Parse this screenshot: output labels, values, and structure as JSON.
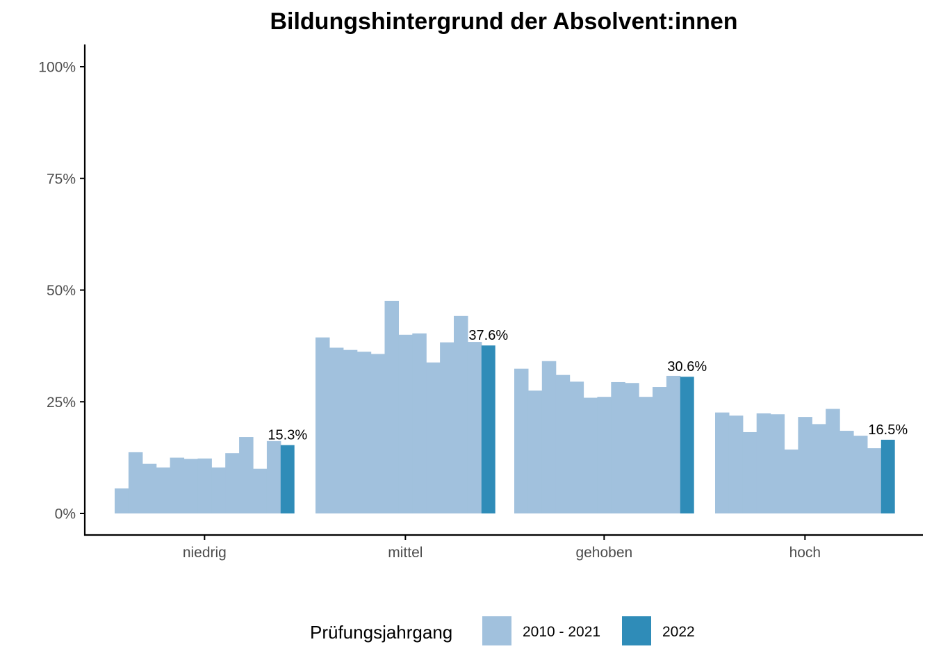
{
  "colors": {
    "previous": "#a1c1dd",
    "current": "#2f8cb8",
    "axis": "#000000",
    "tick_text": "#4d4d4d"
  },
  "chart_data": {
    "type": "bar",
    "title": "Bildungshintergrund der Absolvent:innen",
    "xlabel": "",
    "ylabel": "",
    "ylim": [
      0,
      1
    ],
    "y_ticks": [
      {
        "value": 0,
        "label": "0%"
      },
      {
        "value": 0.25,
        "label": "25%"
      },
      {
        "value": 0.5,
        "label": "50%"
      },
      {
        "value": 0.75,
        "label": "75%"
      },
      {
        "value": 1,
        "label": "100%"
      }
    ],
    "grid": false,
    "legend_position": "bottom",
    "legend_title": "Prüfungsjahrgang",
    "legend": [
      {
        "label": "2010 - 2021",
        "color_key": "previous"
      },
      {
        "label": "2022",
        "color_key": "current"
      }
    ],
    "categories": [
      "niedrig",
      "mittel",
      "gehoben",
      "hoch"
    ],
    "series": [
      {
        "category": "niedrig",
        "values_2010_2021": [
          0.056,
          0.137,
          0.111,
          0.103,
          0.125,
          0.122,
          0.123,
          0.103,
          0.135,
          0.171,
          0.1,
          0.162
        ],
        "value_2022": 0.153,
        "label_2022": "15.3%"
      },
      {
        "category": "mittel",
        "values_2010_2021": [
          0.394,
          0.371,
          0.366,
          0.362,
          0.357,
          0.476,
          0.4,
          0.403,
          0.338,
          0.383,
          0.442,
          0.384
        ],
        "value_2022": 0.376,
        "label_2022": "37.6%"
      },
      {
        "category": "gehoben",
        "values_2010_2021": [
          0.324,
          0.275,
          0.341,
          0.31,
          0.295,
          0.259,
          0.261,
          0.294,
          0.292,
          0.261,
          0.283,
          0.308
        ],
        "value_2022": 0.306,
        "label_2022": "30.6%"
      },
      {
        "category": "hoch",
        "values_2010_2021": [
          0.226,
          0.219,
          0.182,
          0.224,
          0.222,
          0.143,
          0.216,
          0.2,
          0.234,
          0.185,
          0.174,
          0.146
        ],
        "value_2022": 0.165,
        "label_2022": "16.5%"
      }
    ]
  }
}
